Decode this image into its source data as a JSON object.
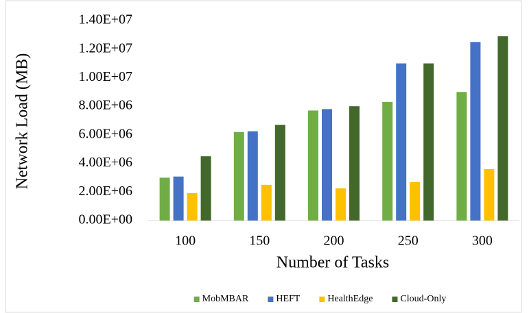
{
  "chart_data": {
    "type": "bar",
    "y_label": "Network Load (MB)",
    "x_label": "Number of Tasks",
    "categories": [
      "100",
      "150",
      "200",
      "250",
      "300"
    ],
    "series": [
      {
        "name": "MobMBAR",
        "color": "#70ad47",
        "values": [
          3000000,
          6200000,
          7700000,
          8300000,
          9000000
        ]
      },
      {
        "name": "HEFT",
        "color": "#4472c4",
        "values": [
          3080000,
          6250000,
          7800000,
          11000000,
          12500000
        ]
      },
      {
        "name": "HealthEdge",
        "color": "#ffc000",
        "values": [
          1920000,
          2500000,
          2250000,
          2700000,
          3600000
        ]
      },
      {
        "name": "Cloud-Only",
        "color": "#43682b",
        "values": [
          4500000,
          6700000,
          8000000,
          11000000,
          12900000
        ]
      }
    ],
    "ylim": [
      0,
      14000000
    ],
    "yticks": [
      {
        "value": 0,
        "label": "0.00E+00"
      },
      {
        "value": 2000000,
        "label": "2.00E+06"
      },
      {
        "value": 4000000,
        "label": "4.00E+06"
      },
      {
        "value": 6000000,
        "label": "6.00E+06"
      },
      {
        "value": 8000000,
        "label": "8.00E+06"
      },
      {
        "value": 10000000,
        "label": "1.00E+07"
      },
      {
        "value": 12000000,
        "label": "1.20E+07"
      },
      {
        "value": 14000000,
        "label": "1.40E+07"
      }
    ],
    "grid": false,
    "legend": "bottom"
  }
}
